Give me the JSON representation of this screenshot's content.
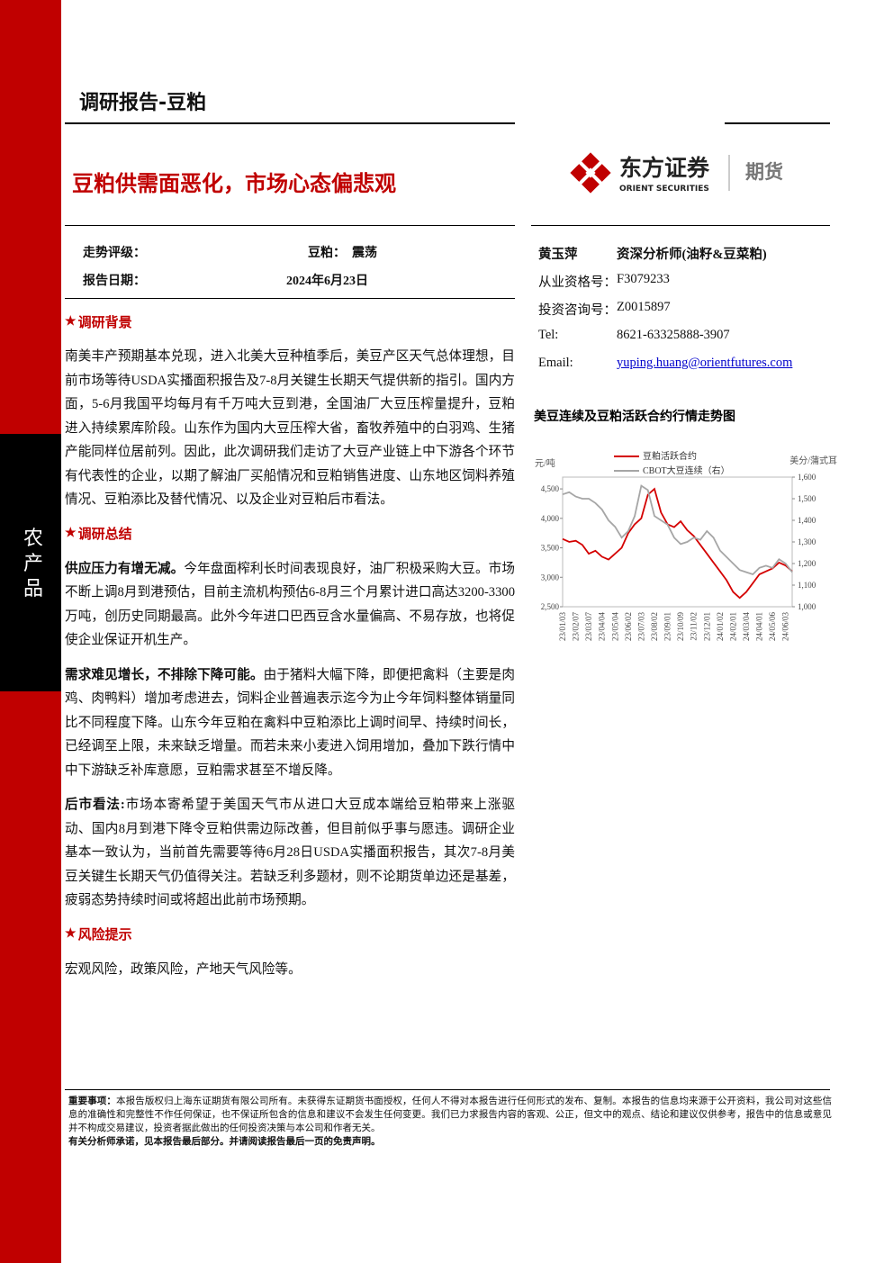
{
  "header": {
    "report_type": "调研报告-豆粕",
    "title": "豆粕供需面恶化，市场心态偏悲观"
  },
  "logo": {
    "name": "东方证券",
    "english": "ORIENT SECURITIES",
    "division": "期货"
  },
  "side_label": "农产品",
  "meta": {
    "rows": [
      [
        "走势评级：",
        "豆粕：　震荡"
      ],
      [
        "报告日期：",
        "2024年6月23日"
      ]
    ]
  },
  "analyst": {
    "name": "黄玉萍",
    "title": "资深分析师(油籽&豆菜粕)",
    "rows": [
      [
        "从业资格号：",
        "F3079233"
      ],
      [
        "投资咨询号：",
        "Z0015897"
      ],
      [
        "Tel:",
        "8621-63325888-3907"
      ],
      [
        "Email:",
        "yuping.huang@orientfutures.com"
      ]
    ]
  },
  "sections": [
    {
      "heading": "调研背景",
      "paragraphs": [
        {
          "text": "南美丰产预期基本兑现，进入北美大豆种植季后，美豆产区天气总体理想，目前市场等待USDA实播面积报告及7-8月关键生长期天气提供新的指引。国内方面，5-6月我国平均每月有千万吨大豆到港，全国油厂大豆压榨量提升，豆粕进入持续累库阶段。山东作为国内大豆压榨大省，畜牧养殖中的白羽鸡、生猪产能同样位居前列。因此，此次调研我们走访了大豆产业链上中下游各个环节有代表性的企业，以期了解油厂买船情况和豆粕销售进度、山东地区饲料养殖情况、豆粕添比及替代情况、以及企业对豆粕后市看法。"
        }
      ]
    },
    {
      "heading": "调研总结",
      "paragraphs": [
        {
          "lead": "供应压力有增无减。",
          "text": "今年盘面榨利长时间表现良好，油厂积极采购大豆。市场不断上调8月到港预估，目前主流机构预估6-8月三个月累计进口高达3200-3300万吨，创历史同期最高。此外今年进口巴西豆含水量偏高、不易存放，也将促使企业保证开机生产。"
        },
        {
          "lead": "需求难见增长，不排除下降可能。",
          "text": "由于猪料大幅下降，即便把禽料（主要是肉鸡、肉鸭料）增加考虑进去，饲料企业普遍表示迄今为止今年饲料整体销量同比不同程度下降。山东今年豆粕在禽料中豆粕添比上调时间早、持续时间长，已经调至上限，未来缺乏增量。而若未来小麦进入饲用增加，叠加下跌行情中中下游缺乏补库意愿，豆粕需求甚至不增反降。"
        },
        {
          "lead": "后市看法:",
          "text": "市场本寄希望于美国天气市从进口大豆成本端给豆粕带来上涨驱动、国内8月到港下降令豆粕供需边际改善，但目前似乎事与愿违。调研企业基本一致认为，当前首先需要等待6月28日USDA实播面积报告，其次7-8月美豆关键生长期天气仍值得关注。若缺乏利多题材，则不论期货单边还是基差，疲弱态势持续时间或将超出此前市场预期。"
        }
      ]
    },
    {
      "heading": "风险提示",
      "paragraphs": [
        {
          "text": "宏观风险，政策风险，产地天气风险等。"
        }
      ]
    }
  ],
  "disclaimer": {
    "lead": "重要事项：",
    "text": "本报告版权归上海东证期货有限公司所有。未获得东证期货书面授权，任何人不得对本报告进行任何形式的发布、复制。本报告的信息均来源于公开资料，我公司对这些信息的准确性和完整性不作任何保证，也不保证所包含的信息和建议不会发生任何变更。我们已力求报告内容的客观、公正，但文中的观点、结论和建议仅供参考，报告中的信息或意见并不构成交易建议，投资者据此做出的任何投资决策与本公司和作者无关。",
    "note": "有关分析师承诺，见本报告最后部分。并请阅读报告最后一页的免责声明。"
  },
  "chart_data": {
    "type": "line",
    "title": "美豆连续及豆粕活跃合约行情走势图",
    "y_label": "元/吨",
    "y2_label": "美分/蒲式耳",
    "categories": [
      "23/01/03",
      null,
      "23/02/07",
      null,
      "23/03/07",
      null,
      "23/04/04",
      null,
      "23/05/04",
      null,
      "23/06/02",
      null,
      "23/07/03",
      null,
      "23/08/02",
      null,
      "23/09/01",
      null,
      "23/10/09",
      null,
      "23/11/02",
      null,
      "23/12/01",
      null,
      "24/01/02",
      null,
      "24/02/01",
      null,
      "24/03/04",
      null,
      "24/04/01",
      null,
      "24/05/06",
      null,
      "24/06/03",
      null
    ],
    "series": [
      {
        "name": "豆粕活跃合约",
        "color": "#d40000",
        "values": [
          3650,
          3600,
          3620,
          3550,
          3400,
          3450,
          3350,
          3300,
          3400,
          3500,
          3750,
          3900,
          4000,
          4400,
          4500,
          4100,
          3900,
          3850,
          3950,
          3800,
          3700,
          3550,
          3400,
          3250,
          3100,
          2950,
          2750,
          2650,
          2750,
          2900,
          3050,
          3100,
          3150,
          3250,
          3200,
          3100
        ]
      },
      {
        "name": "CBOT大豆连续（右）",
        "color": "#a6a6a6",
        "axis": "y2",
        "values": [
          1520,
          1530,
          1510,
          1500,
          1500,
          1480,
          1450,
          1400,
          1370,
          1320,
          1350,
          1420,
          1560,
          1540,
          1420,
          1400,
          1380,
          1320,
          1290,
          1300,
          1320,
          1310,
          1350,
          1320,
          1260,
          1230,
          1200,
          1170,
          1160,
          1150,
          1180,
          1190,
          1180,
          1220,
          1200,
          1160
        ]
      }
    ],
    "ylim": [
      2500,
      4700
    ],
    "yticks": [
      {
        "value": 2500,
        "label": "2,500"
      },
      {
        "value": 3000,
        "label": "3,000"
      },
      {
        "value": 3500,
        "label": "3,500"
      },
      {
        "value": 4000,
        "label": "4,000"
      },
      {
        "value": 4500,
        "label": "4,500"
      }
    ],
    "y2lim": [
      1000,
      1600
    ],
    "y2ticks": [
      {
        "value": 1000,
        "label": "1,000"
      },
      {
        "value": 1100,
        "label": "1,100"
      },
      {
        "value": 1200,
        "label": "1,200"
      },
      {
        "value": 1300,
        "label": "1,300"
      },
      {
        "value": 1400,
        "label": "1,400"
      },
      {
        "value": 1500,
        "label": "1,500"
      },
      {
        "value": 1600,
        "label": "1,600"
      }
    ],
    "legend": "top"
  }
}
